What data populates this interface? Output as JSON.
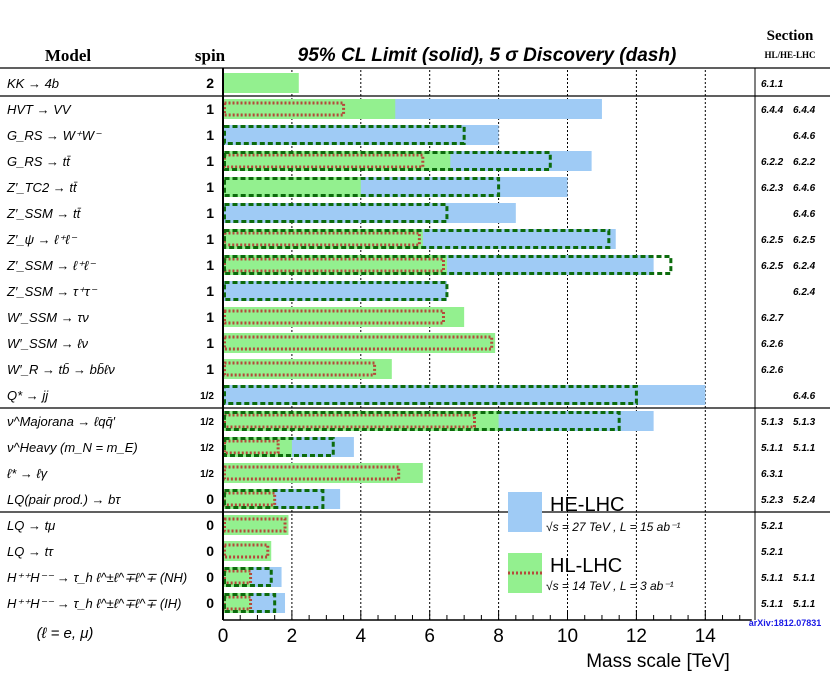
{
  "chart_data": {
    "type": "bar",
    "title": "95% CL Limit (solid), 5 σ Discovery (dash)",
    "header": {
      "model_label": "Model",
      "spin_label": "spin",
      "section_label": "Section",
      "section_sub_label": "HL/HE-LHC"
    },
    "xlabel": "Mass scale [TeV]",
    "xlim": [
      0,
      15
    ],
    "xticks": [
      0,
      2,
      4,
      6,
      8,
      10,
      12,
      14
    ],
    "xtick_labels": [
      "0",
      "2",
      "4",
      "6",
      "8",
      "10",
      "12",
      "14"
    ],
    "grid": true,
    "legend": {
      "position": "bottom-right",
      "entries": [
        {
          "name": "HE-LHC",
          "detail": "√s = 27 TeV , L = 15 ab⁻¹",
          "color": "#9fcbf5"
        },
        {
          "name": "HL-LHC",
          "detail": "√s = 14 TeV , L = 3 ab⁻¹",
          "color": "#93f08f"
        }
      ]
    },
    "footer_note": "(ℓ = e, μ)",
    "reference": "arXiv:1812.07831",
    "colors": {
      "he_bar": "#9fcbf5",
      "hl_bar": "#93f08f",
      "he_discovery": "#0c6b0c",
      "hl_discovery": "#b5493a",
      "separator": "#000000",
      "reference": "#1a1ae6"
    },
    "groups_start_rows": [
      1,
      13,
      17
    ],
    "rows": [
      {
        "model": "KK → 4b",
        "spin": "2",
        "he_limit": null,
        "hl_limit": 2.2,
        "he_disc": null,
        "hl_disc": null,
        "section_hl": "6.1.1",
        "section_he": ""
      },
      {
        "model": "HVT → VV",
        "spin": "1",
        "he_limit": 11.0,
        "hl_limit": 5.0,
        "he_disc": null,
        "hl_disc": 3.5,
        "section_hl": "6.4.4",
        "section_he": "6.4.4"
      },
      {
        "model": "G_RS → W⁺W⁻",
        "spin": "1",
        "he_limit": 8.0,
        "hl_limit": null,
        "he_disc": 7.0,
        "hl_disc": null,
        "section_hl": "",
        "section_he": "6.4.6"
      },
      {
        "model": "G_RS → tt̄",
        "spin": "1",
        "he_limit": 10.7,
        "hl_limit": 6.6,
        "he_disc": 9.5,
        "hl_disc": 5.8,
        "section_hl": "6.2.2",
        "section_he": "6.2.2"
      },
      {
        "model": "Z′_TC2 → tt̄",
        "spin": "1",
        "he_limit": 10.0,
        "hl_limit": 4.0,
        "he_disc": 8.0,
        "hl_disc": null,
        "section_hl": "6.2.3",
        "section_he": "6.4.6"
      },
      {
        "model": "Z′_SSM → tt̄",
        "spin": "1",
        "he_limit": 8.5,
        "hl_limit": null,
        "he_disc": 6.5,
        "hl_disc": null,
        "section_hl": "",
        "section_he": "6.4.6"
      },
      {
        "model": "Z′_ψ → ℓ⁺ℓ⁻",
        "spin": "1",
        "he_limit": 11.4,
        "hl_limit": 5.8,
        "he_disc": 11.2,
        "hl_disc": 5.7,
        "section_hl": "6.2.5",
        "section_he": "6.2.5"
      },
      {
        "model": "Z′_SSM → ℓ⁺ℓ⁻",
        "spin": "1",
        "he_limit": 12.5,
        "hl_limit": 6.5,
        "he_disc": 13.0,
        "hl_disc": 6.4,
        "section_hl": "6.2.5",
        "section_he": "6.2.4"
      },
      {
        "model": "Z′_SSM → τ⁺τ⁻",
        "spin": "1",
        "he_limit": 6.5,
        "hl_limit": null,
        "he_disc": 6.5,
        "hl_disc": null,
        "section_hl": "",
        "section_he": "6.2.4"
      },
      {
        "model": "W′_SSM → τν",
        "spin": "1",
        "he_limit": null,
        "hl_limit": 7.0,
        "he_disc": null,
        "hl_disc": 6.4,
        "section_hl": "6.2.7",
        "section_he": ""
      },
      {
        "model": "W′_SSM → ℓν",
        "spin": "1",
        "he_limit": null,
        "hl_limit": 7.9,
        "he_disc": null,
        "hl_disc": 7.8,
        "section_hl": "6.2.6",
        "section_he": ""
      },
      {
        "model": "W′_R → tb̄ → bb̄ℓν",
        "spin": "1",
        "he_limit": null,
        "hl_limit": 4.9,
        "he_disc": null,
        "hl_disc": 4.4,
        "section_hl": "6.2.6",
        "section_he": ""
      },
      {
        "model": "Q* → jj",
        "spin": "1/2",
        "he_limit": 14.0,
        "hl_limit": null,
        "he_disc": 12.0,
        "hl_disc": null,
        "section_hl": "",
        "section_he": "6.4.6"
      },
      {
        "model": "ν^Majorana → ℓqq̄′",
        "spin": "1/2",
        "he_limit": 12.5,
        "hl_limit": 8.0,
        "he_disc": 11.5,
        "hl_disc": 7.3,
        "section_hl": "5.1.3",
        "section_he": "5.1.3"
      },
      {
        "model": "ν^Heavy (m_N = m_E)",
        "spin": "1/2",
        "he_limit": 3.8,
        "hl_limit": 2.0,
        "he_disc": 3.2,
        "hl_disc": 1.6,
        "section_hl": "5.1.1",
        "section_he": "5.1.1"
      },
      {
        "model": "ℓ* → ℓγ",
        "spin": "1/2",
        "he_limit": null,
        "hl_limit": 5.8,
        "he_disc": null,
        "hl_disc": 5.1,
        "section_hl": "6.3.1",
        "section_he": ""
      },
      {
        "model": "LQ(pair prod.) → bτ",
        "spin": "0",
        "he_limit": 3.4,
        "hl_limit": 1.5,
        "he_disc": 2.9,
        "hl_disc": 1.5,
        "section_hl": "5.2.3",
        "section_he": "5.2.4"
      },
      {
        "model": "LQ → tμ",
        "spin": "0",
        "he_limit": null,
        "hl_limit": 1.9,
        "he_disc": null,
        "hl_disc": 1.8,
        "section_hl": "5.2.1",
        "section_he": ""
      },
      {
        "model": "LQ → tτ",
        "spin": "0",
        "he_limit": null,
        "hl_limit": 1.4,
        "he_disc": null,
        "hl_disc": 1.3,
        "section_hl": "5.2.1",
        "section_he": ""
      },
      {
        "model": "H⁺⁺H⁻⁻ → τ_h ℓ^±ℓ^∓ℓ^∓ (NH)",
        "spin": "0",
        "he_limit": 1.7,
        "hl_limit": 0.8,
        "he_disc": 1.4,
        "hl_disc": 0.8,
        "section_hl": "5.1.1",
        "section_he": "5.1.1"
      },
      {
        "model": "H⁺⁺H⁻⁻ → τ_h ℓ^±ℓ^∓ℓ^∓ (IH)",
        "spin": "0",
        "he_limit": 1.8,
        "hl_limit": 0.8,
        "he_disc": 1.5,
        "hl_disc": 0.8,
        "section_hl": "5.1.1",
        "section_he": "5.1.1"
      }
    ]
  }
}
